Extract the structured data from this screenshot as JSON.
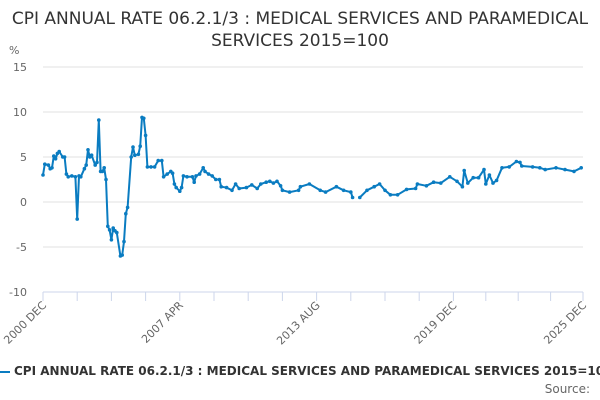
{
  "chart_data": {
    "type": "line",
    "title": "CPI ANNUAL RATE 06.2.1/3 : MEDICAL SERVICES AND PARAMEDICAL SERVICES 2015=100",
    "ylabel": "%",
    "xlabel": "",
    "ylim": [
      -10,
      15
    ],
    "yticks": [
      -10,
      -5,
      0,
      5,
      10,
      15
    ],
    "xrange": [
      "2000-12",
      "2025-12"
    ],
    "xtick_labels": [
      {
        "label": "2000 DEC",
        "date": "2000-12"
      },
      {
        "label": "2007 APR",
        "date": "2007-04"
      },
      {
        "label": "2013 AUG",
        "date": "2013-08"
      },
      {
        "label": "2019 DEC",
        "date": "2019-12"
      },
      {
        "label": "2025 DEC",
        "date": "2025-12"
      }
    ],
    "grid": true,
    "legend_position": "bottom",
    "series": [
      {
        "name": "CPI ANNUAL RATE 06.2.1/3 : MEDICAL SERVICES AND PARAMEDICAL SERVICES 2015=100",
        "color": "#0a7cc1",
        "points": [
          [
            "2000-12",
            3.0
          ],
          [
            "2001-01",
            4.2
          ],
          [
            "2001-03",
            4.1
          ],
          [
            "2001-04",
            3.7
          ],
          [
            "2001-05",
            3.8
          ],
          [
            "2001-06",
            5.1
          ],
          [
            "2001-07",
            4.8
          ],
          [
            "2001-08",
            5.4
          ],
          [
            "2001-09",
            5.6
          ],
          [
            "2001-11",
            5.0
          ],
          [
            "2001-12",
            5.0
          ],
          [
            "2002-01",
            3.1
          ],
          [
            "2002-02",
            2.8
          ],
          [
            "2002-04",
            2.9
          ],
          [
            "2002-06",
            2.8
          ],
          [
            "2002-07",
            -1.9
          ],
          [
            "2002-08",
            2.9
          ],
          [
            "2002-09",
            2.8
          ],
          [
            "2002-11",
            3.7
          ],
          [
            "2002-12",
            4.1
          ],
          [
            "2003-01",
            5.8
          ],
          [
            "2003-02",
            5.0
          ],
          [
            "2003-03",
            5.2
          ],
          [
            "2003-05",
            4.1
          ],
          [
            "2003-06",
            4.4
          ],
          [
            "2003-07",
            9.1
          ],
          [
            "2003-08",
            3.4
          ],
          [
            "2003-09",
            3.4
          ],
          [
            "2003-10",
            3.8
          ],
          [
            "2003-11",
            2.5
          ],
          [
            "2003-12",
            -2.7
          ],
          [
            "2004-01",
            -3.1
          ],
          [
            "2004-02",
            -4.2
          ],
          [
            "2004-03",
            -2.9
          ],
          [
            "2004-04",
            -3.2
          ],
          [
            "2004-05",
            -3.4
          ],
          [
            "2004-07",
            -6.0
          ],
          [
            "2004-08",
            -5.9
          ],
          [
            "2004-09",
            -4.4
          ],
          [
            "2004-10",
            -1.3
          ],
          [
            "2004-11",
            -0.6
          ],
          [
            "2005-01",
            5.0
          ],
          [
            "2005-02",
            6.1
          ],
          [
            "2005-03",
            5.2
          ],
          [
            "2005-05",
            5.3
          ],
          [
            "2005-06",
            6.2
          ],
          [
            "2005-07",
            9.4
          ],
          [
            "2005-08",
            9.3
          ],
          [
            "2005-09",
            7.4
          ],
          [
            "2005-10",
            3.9
          ],
          [
            "2005-12",
            3.9
          ],
          [
            "2006-02",
            3.9
          ],
          [
            "2006-04",
            4.6
          ],
          [
            "2006-06",
            4.6
          ],
          [
            "2006-07",
            2.8
          ],
          [
            "2006-09",
            3.1
          ],
          [
            "2006-11",
            3.4
          ],
          [
            "2006-12",
            3.2
          ],
          [
            "2007-01",
            2.0
          ],
          [
            "2007-02",
            1.6
          ],
          [
            "2007-04",
            1.2
          ],
          [
            "2007-05",
            1.6
          ],
          [
            "2007-06",
            2.9
          ],
          [
            "2007-08",
            2.8
          ],
          [
            "2007-11",
            2.8
          ],
          [
            "2007-12",
            2.2
          ],
          [
            "2008-01",
            2.9
          ],
          [
            "2008-03",
            3.1
          ],
          [
            "2008-05",
            3.8
          ],
          [
            "2008-06",
            3.4
          ],
          [
            "2008-08",
            3.1
          ],
          [
            "2008-10",
            2.9
          ],
          [
            "2008-12",
            2.5
          ],
          [
            "2009-02",
            2.5
          ],
          [
            "2009-03",
            1.7
          ],
          [
            "2009-06",
            1.6
          ],
          [
            "2009-09",
            1.3
          ],
          [
            "2009-11",
            2.0
          ],
          [
            "2010-01",
            1.5
          ],
          [
            "2010-05",
            1.6
          ],
          [
            "2010-08",
            1.9
          ],
          [
            "2010-11",
            1.5
          ],
          [
            "2011-01",
            2.0
          ],
          [
            "2011-04",
            2.2
          ],
          [
            "2011-06",
            2.3
          ],
          [
            "2011-08",
            2.1
          ],
          [
            "2011-10",
            2.3
          ],
          [
            "2011-12",
            1.8
          ],
          [
            "2012-01",
            1.3
          ],
          [
            "2012-05",
            1.1
          ],
          [
            "2012-10",
            1.3
          ],
          [
            "2012-11",
            1.7
          ],
          [
            "2013-04",
            2.0
          ],
          [
            "2013-10",
            1.3
          ],
          [
            "2014-01",
            1.1
          ],
          [
            "2014-07",
            1.7
          ],
          [
            "2014-11",
            1.3
          ],
          [
            "2015-03",
            1.1
          ],
          [
            "2015-04",
            0.5
          ],
          [
            "2015-06",
            null
          ],
          [
            "2015-08",
            0.5
          ],
          [
            "2015-12",
            1.3
          ],
          [
            "2016-04",
            1.7
          ],
          [
            "2016-07",
            2.0
          ],
          [
            "2016-10",
            1.3
          ],
          [
            "2017-01",
            0.8
          ],
          [
            "2017-05",
            0.8
          ],
          [
            "2017-10",
            1.4
          ],
          [
            "2018-03",
            1.5
          ],
          [
            "2018-04",
            2.0
          ],
          [
            "2018-09",
            1.8
          ],
          [
            "2019-01",
            2.2
          ],
          [
            "2019-05",
            2.1
          ],
          [
            "2019-10",
            2.8
          ],
          [
            "2020-02",
            2.3
          ],
          [
            "2020-05",
            1.7
          ],
          [
            "2020-06",
            3.5
          ],
          [
            "2020-08",
            2.1
          ],
          [
            "2020-11",
            2.7
          ],
          [
            "2021-02",
            2.7
          ],
          [
            "2021-05",
            3.6
          ],
          [
            "2021-06",
            2.0
          ],
          [
            "2021-08",
            3.0
          ],
          [
            "2021-10",
            2.1
          ],
          [
            "2021-12",
            2.4
          ],
          [
            "2022-03",
            3.8
          ],
          [
            "2022-07",
            3.9
          ],
          [
            "2022-11",
            4.5
          ],
          [
            "2023-01",
            4.4
          ],
          [
            "2023-02",
            4.0
          ],
          [
            "2023-08",
            3.9
          ],
          [
            "2023-12",
            3.8
          ],
          [
            "2024-03",
            3.6
          ],
          [
            "2024-09",
            3.8
          ],
          [
            "2025-02",
            3.6
          ],
          [
            "2025-07",
            3.4
          ],
          [
            "2025-11",
            3.8
          ]
        ]
      }
    ]
  },
  "legend_label": "CPI ANNUAL RATE 06.2.1/3 : MEDICAL SERVICES AND PARAMEDICAL SERVICES 2015=100",
  "source_label": "Source:"
}
